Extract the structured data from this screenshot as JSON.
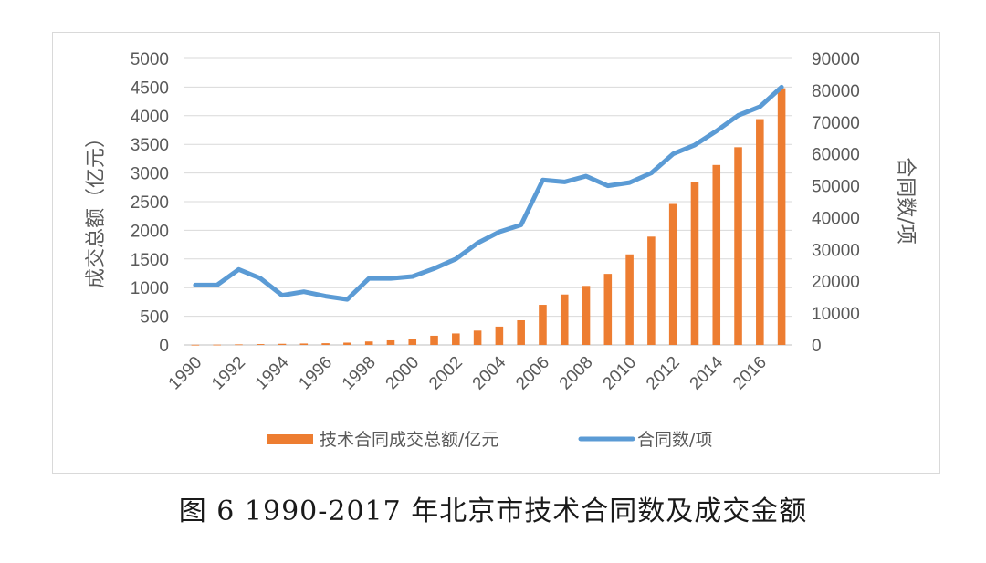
{
  "caption": "图 6 1990-2017 年北京市技术合同数及成交金额",
  "chart_data": {
    "type": "bar+line",
    "x": [
      1990,
      1991,
      1992,
      1993,
      1994,
      1995,
      1996,
      1997,
      1998,
      1999,
      2000,
      2001,
      2002,
      2003,
      2004,
      2005,
      2006,
      2007,
      2008,
      2009,
      2010,
      2011,
      2012,
      2013,
      2014,
      2015,
      2016,
      2017
    ],
    "x_tick_labels": [
      "1990",
      "1992",
      "1994",
      "1996",
      "1998",
      "2000",
      "2002",
      "2004",
      "2006",
      "2008",
      "2010",
      "2012",
      "2014",
      "2016"
    ],
    "series": [
      {
        "name": "技术合同成交总额/亿元",
        "type": "bar",
        "axis": "left",
        "color": "#ED7D31",
        "values": [
          3,
          5,
          10,
          15,
          20,
          25,
          30,
          40,
          60,
          80,
          110,
          160,
          200,
          250,
          320,
          430,
          700,
          880,
          1030,
          1240,
          1580,
          1890,
          2460,
          2850,
          3140,
          3450,
          3940,
          4480
        ]
      },
      {
        "name": "合同数/项",
        "type": "line",
        "axis": "right",
        "color": "#5B9BD5",
        "values": [
          18800,
          18800,
          23700,
          20900,
          15600,
          16700,
          15300,
          14300,
          20900,
          20900,
          21500,
          24000,
          27000,
          32000,
          35500,
          37700,
          51800,
          51200,
          53000,
          50000,
          51000,
          54000,
          60000,
          62800,
          67200,
          72100,
          74800,
          81000
        ]
      }
    ],
    "y_left": {
      "label": "成交总额（亿元）",
      "range": [
        0,
        5000
      ],
      "ticks": [
        "0",
        "500",
        "1000",
        "1500",
        "2000",
        "2500",
        "3000",
        "3500",
        "4000",
        "4500",
        "5000"
      ]
    },
    "y_right": {
      "label": "合同数/项",
      "range": [
        0,
        90000
      ],
      "ticks": [
        "0",
        "10000",
        "20000",
        "30000",
        "40000",
        "50000",
        "60000",
        "70000",
        "80000",
        "90000"
      ]
    },
    "gridlines": "horizontal",
    "legend": {
      "position": "bottom",
      "entries": [
        "技术合同成交总额/亿元",
        "合同数/项"
      ]
    }
  }
}
